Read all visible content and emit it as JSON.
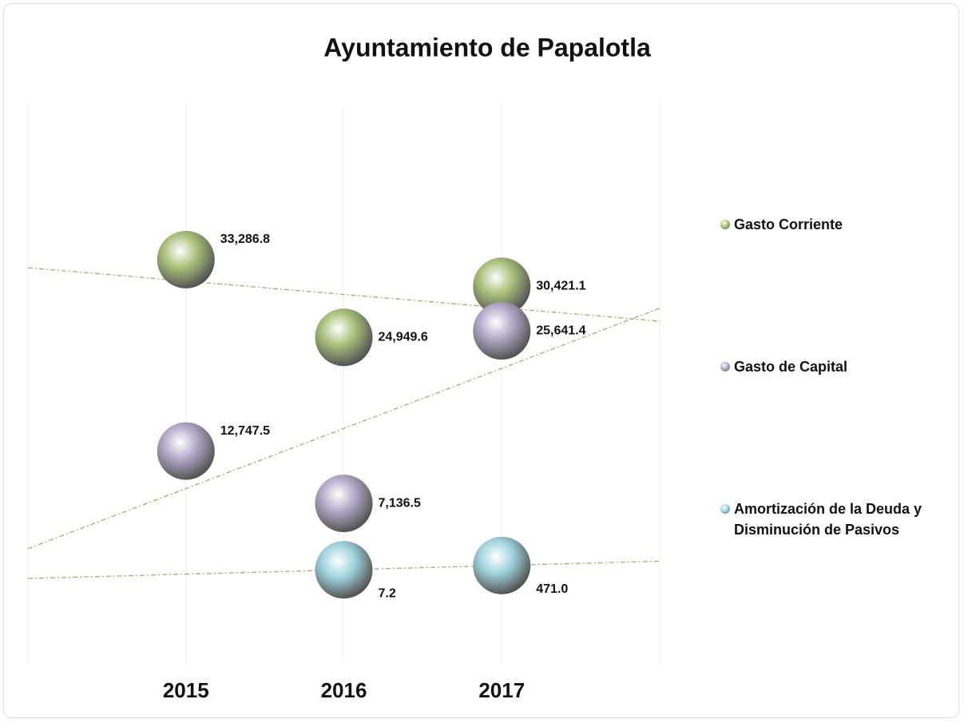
{
  "chart_data": {
    "type": "bubble",
    "title": "Ayuntamiento de Papalotla",
    "x": [
      2015,
      2016,
      2017
    ],
    "xlim": [
      2014,
      2018
    ],
    "xticks": [
      2015,
      2016,
      2017
    ],
    "ylim": [
      -10000,
      50000
    ],
    "grid": true,
    "trendlines": true,
    "legend": "right",
    "series": [
      {
        "name": "Gasto Corriente",
        "color": "#a9c07a",
        "values": [
          33286.8,
          24949.6,
          30421.1
        ],
        "value_labels": [
          "33,286.8",
          "24,949.6",
          "30,421.1"
        ]
      },
      {
        "name": "Gasto de Capital",
        "color": "#b3a9c9",
        "values": [
          12747.5,
          7136.5,
          25641.4
        ],
        "value_labels": [
          "12,747.5",
          "7,136.5",
          "25,641.4"
        ]
      },
      {
        "name": "Amortización de la Deuda y Disminución de Pasivos",
        "color": "#9fd3de",
        "values": [
          null,
          7.2,
          471.0
        ],
        "value_labels": [
          null,
          "7.2",
          "471.0"
        ]
      }
    ]
  }
}
